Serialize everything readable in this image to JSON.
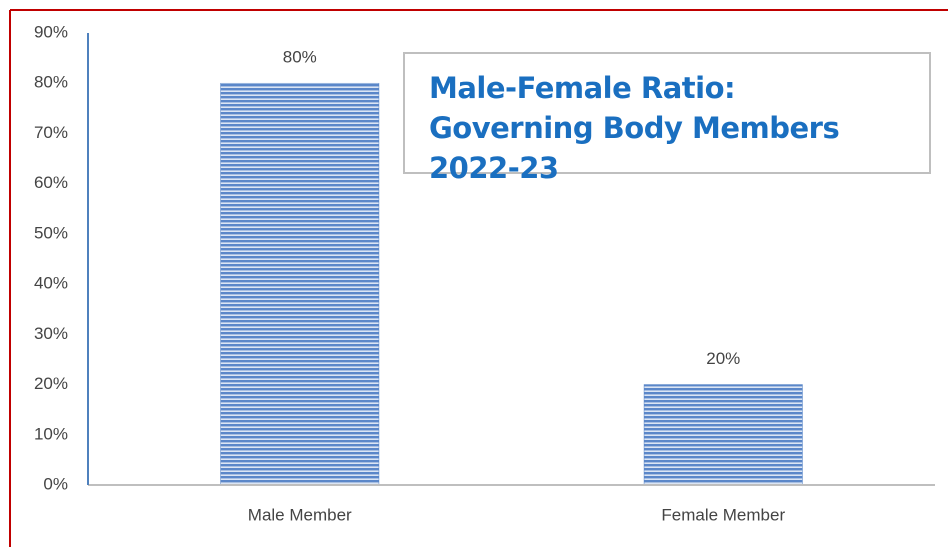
{
  "chart_data": {
    "type": "bar",
    "title": "Male-Female Ratio: Governing Body Members 2022-23",
    "categories": [
      "Male Member",
      "Female Member"
    ],
    "values": [
      80,
      20
    ],
    "value_labels": [
      "80%",
      "20%"
    ],
    "color": "#4f7fc4",
    "ylim": [
      0,
      90
    ],
    "yticks": [
      {
        "value": 0,
        "label": "0%"
      },
      {
        "value": 10,
        "label": "10%"
      },
      {
        "value": 20,
        "label": "20%"
      },
      {
        "value": 30,
        "label": "30%"
      },
      {
        "value": 40,
        "label": "40%"
      },
      {
        "value": 50,
        "label": "50%"
      },
      {
        "value": 60,
        "label": "60%"
      },
      {
        "value": 70,
        "label": "70%"
      },
      {
        "value": 80,
        "label": "80%"
      },
      {
        "value": 90,
        "label": "90%"
      }
    ],
    "grid": false
  }
}
